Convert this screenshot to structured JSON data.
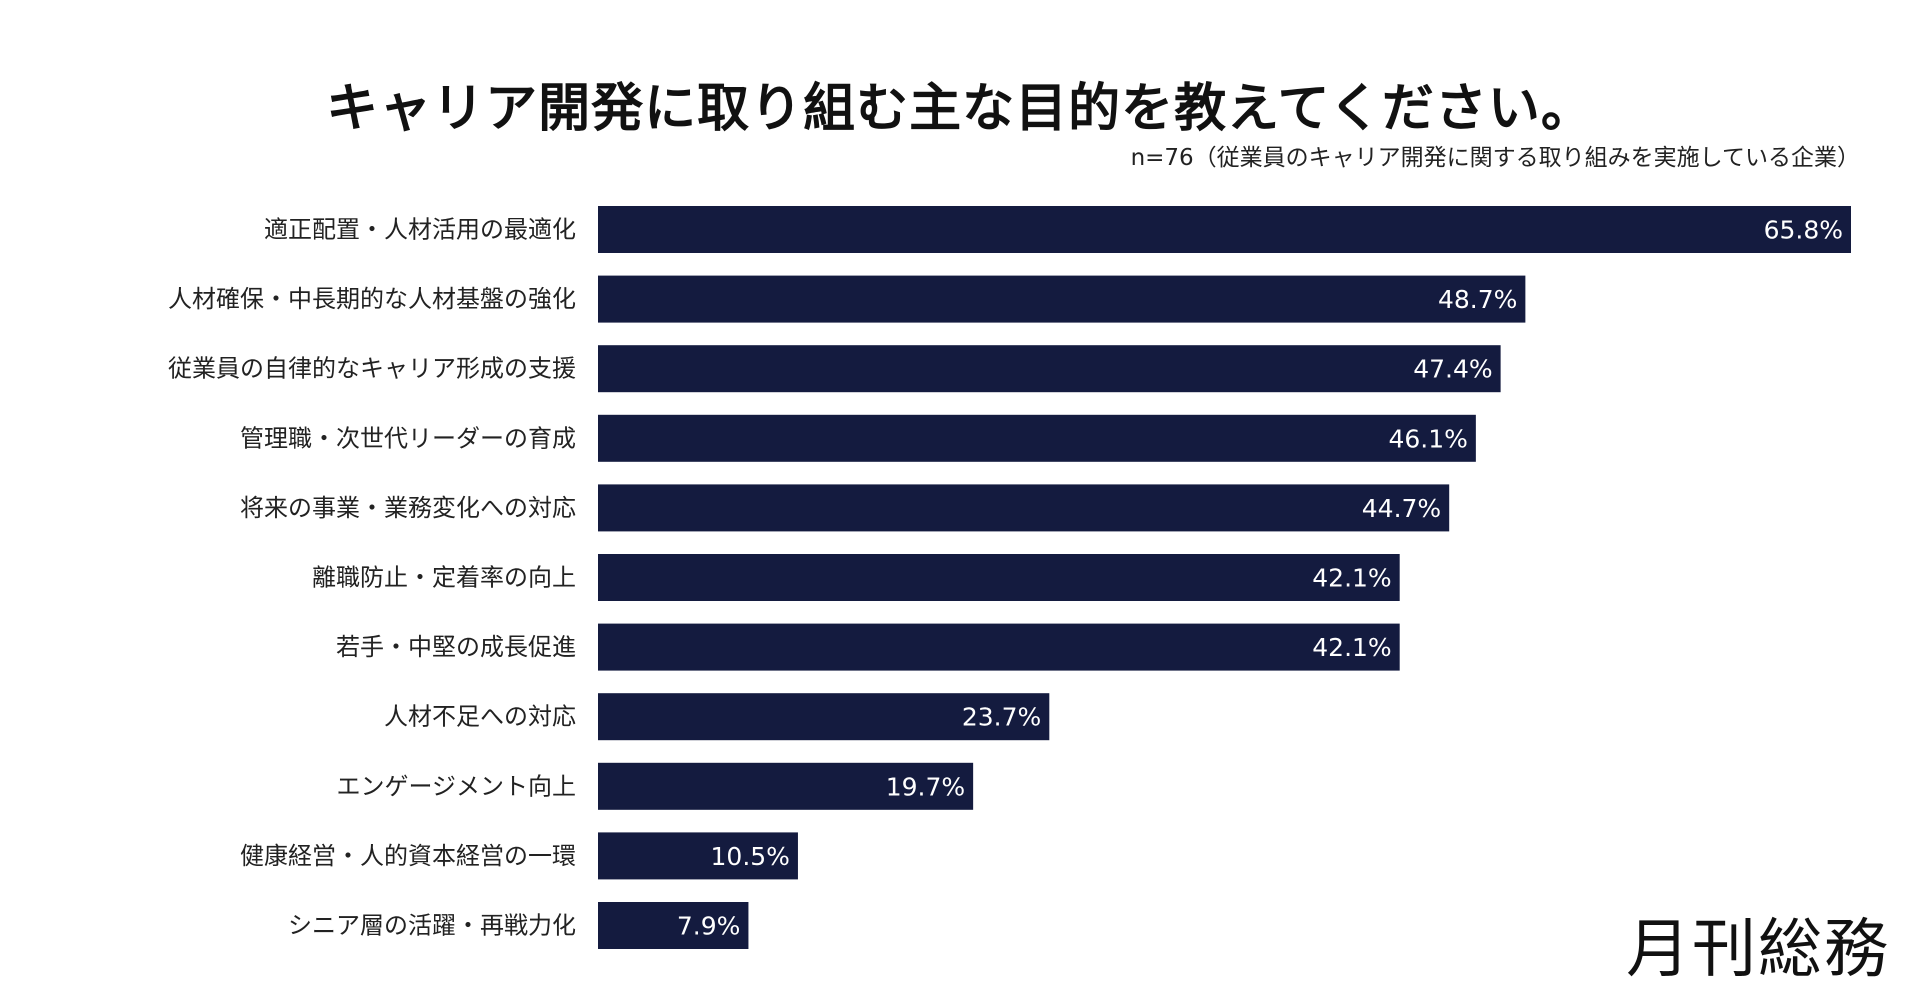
{
  "chart_data": {
    "type": "bar",
    "orientation": "horizontal",
    "title": "キャリア開発に取り組む主な目的を教えてください。",
    "subtitle": "n=76（従業員のキャリア開発に関する取り組みを実施している企業）",
    "categories": [
      "適正配置・人材活用の最適化",
      "人材確保・中長期的な人材基盤の強化",
      "従業員の自律的なキャリア形成の支援",
      "管理職・次世代リーダーの育成",
      "将来の事業・業務変化への対応",
      "離職防止・定着率の向上",
      "若手・中堅の成長促進",
      "人材不足への対応",
      "エンゲージメント向上",
      "健康経営・人的資本経営の一環",
      "シニア層の活躍・再戦力化"
    ],
    "values": [
      65.8,
      48.7,
      47.4,
      46.1,
      44.7,
      42.1,
      42.1,
      23.7,
      19.7,
      10.5,
      7.9
    ],
    "value_suffix": "%",
    "xlim": [
      0,
      65.8
    ],
    "grid": false,
    "bar_color": "#141b3f"
  },
  "logo": "月刊総務"
}
